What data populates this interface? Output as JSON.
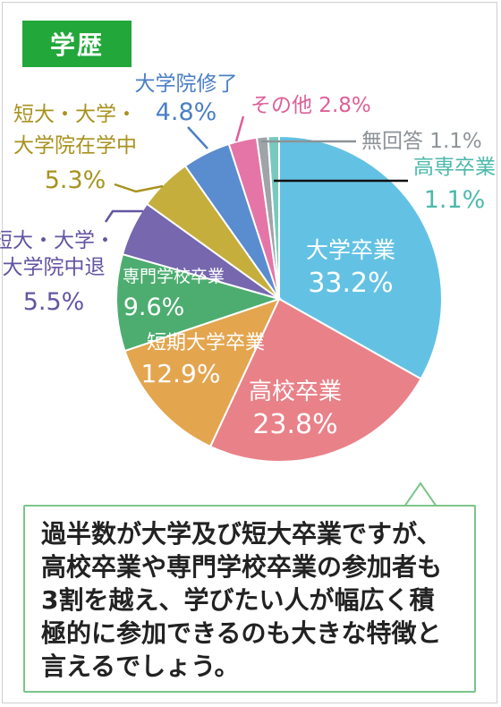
{
  "header": {
    "badge": "学歴"
  },
  "chart_data": {
    "type": "pie",
    "title": "",
    "unit": "%",
    "slices": [
      {
        "label": "大学卒業",
        "value": 33.2,
        "value_label": "33.2%",
        "color": "#63c2e4"
      },
      {
        "label": "高校卒業",
        "value": 23.8,
        "value_label": "23.8%",
        "color": "#e98188"
      },
      {
        "label": "短期大学卒業",
        "value": 12.9,
        "value_label": "12.9%",
        "color": "#e4a54f"
      },
      {
        "label": "専門学校卒業",
        "value": 9.6,
        "value_label": "9.6%",
        "color": "#4dad70"
      },
      {
        "label": "短大・大学・大学院中退",
        "value": 5.5,
        "value_label": "5.5%",
        "color": "#7667ae"
      },
      {
        "label": "短大・大学・大学院在学中",
        "value": 5.3,
        "value_label": "5.3%",
        "color": "#c5ae3b"
      },
      {
        "label": "大学院修了",
        "value": 4.8,
        "value_label": "4.8%",
        "color": "#5a8cd0"
      },
      {
        "label": "その他",
        "value": 2.8,
        "value_label": "2.8%",
        "color": "#e575a6"
      },
      {
        "label": "無回答",
        "value": 1.1,
        "value_label": "1.1%",
        "color": "#9ea4a8"
      },
      {
        "label": "高専卒業",
        "value": 1.1,
        "value_label": "1.1%",
        "color": "#79c9c0"
      }
    ]
  },
  "note": {
    "text": "過半数が大学及び短大卒業ですが、高校卒業や専門学校卒業の参加者も3割を越え、学びたい人が幅広く積極的に参加できるのも大きな特徴と言えるでしょう。"
  }
}
